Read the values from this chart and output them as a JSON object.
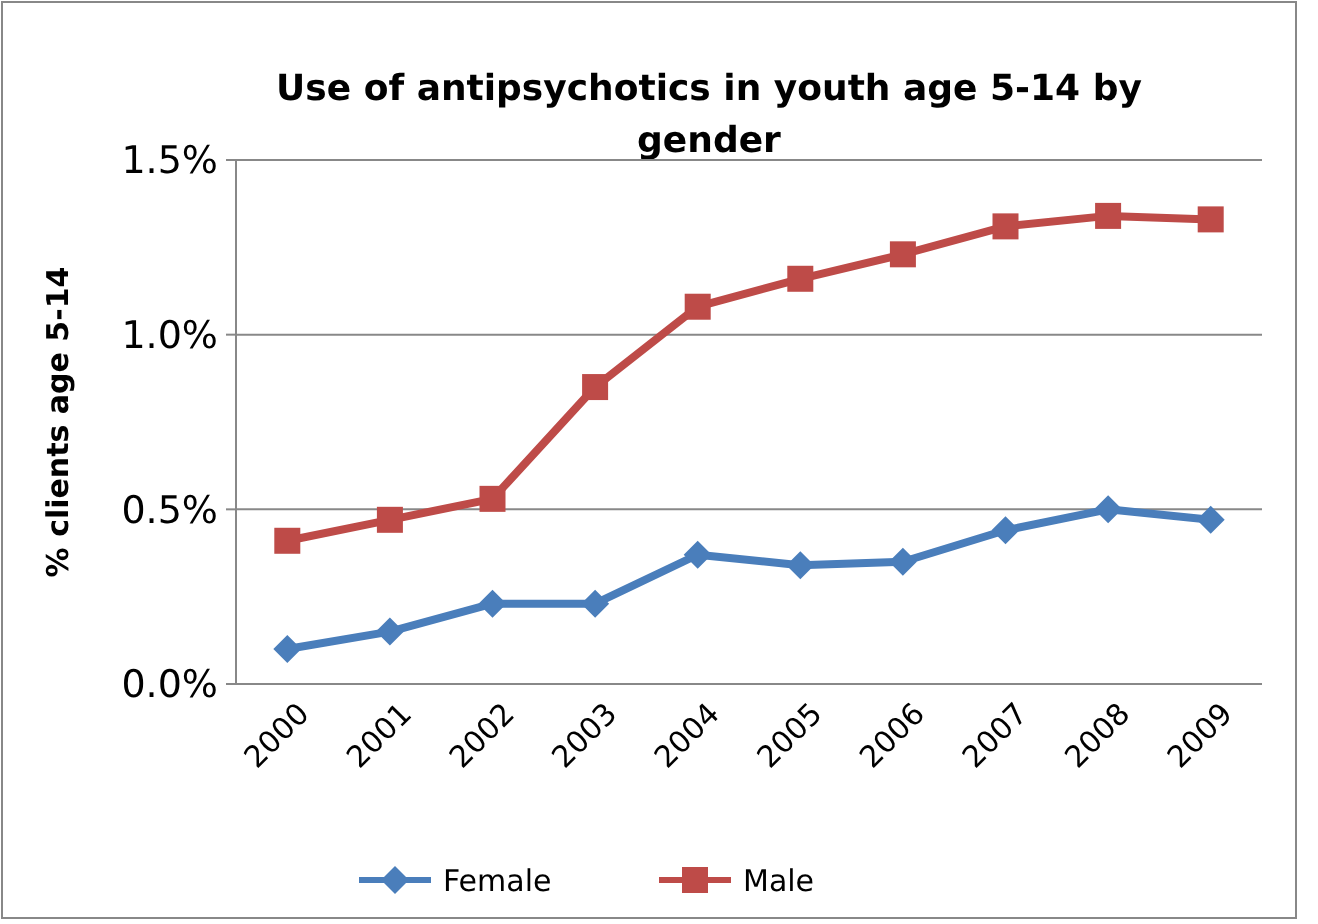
{
  "chart_data": {
    "type": "line",
    "title": "Use of antipsychotics in youth age 5-14 by gender",
    "ylabel": "% clients age 5-14",
    "categories": [
      "2000",
      "2001",
      "2002",
      "2003",
      "2004",
      "2005",
      "2006",
      "2007",
      "2008",
      "2009"
    ],
    "series": [
      {
        "name": "Female",
        "color": "#4a7ebb",
        "marker": "diamond",
        "values": [
          0.1,
          0.15,
          0.23,
          0.23,
          0.37,
          0.34,
          0.35,
          0.44,
          0.5,
          0.47
        ]
      },
      {
        "name": "Male",
        "color": "#be4b48",
        "marker": "square",
        "values": [
          0.41,
          0.47,
          0.53,
          0.85,
          1.08,
          1.16,
          1.23,
          1.31,
          1.34,
          1.33
        ]
      }
    ],
    "ylim": [
      0,
      1.5
    ],
    "yticks": [
      {
        "value": 0,
        "label": "0.0%"
      },
      {
        "value": 0.5,
        "label": "0.5%"
      },
      {
        "value": 1,
        "label": "1.0%"
      },
      {
        "value": 1.5,
        "label": "1.5%"
      }
    ],
    "grid": "y",
    "legend": "bottom",
    "line_style": "solid"
  }
}
